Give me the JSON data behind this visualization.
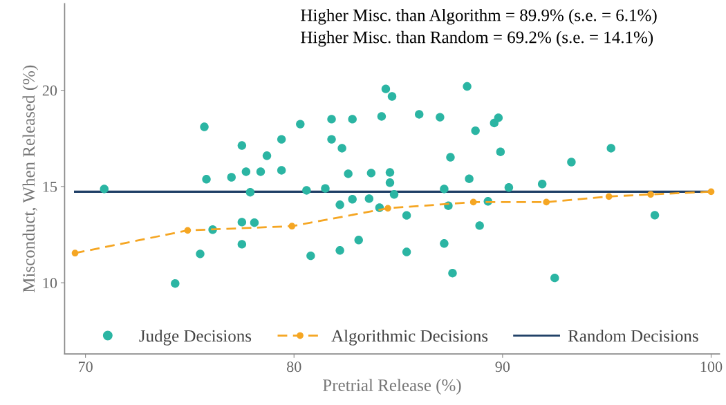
{
  "chart_data": {
    "type": "scatter",
    "xlabel": "Pretrial Release (%)",
    "ylabel": "Misconduct, When Released (%)",
    "annotations": [
      "Higher Misc. than Algorithm = 89.9% (s.e. = 6.1%)",
      "Higher Misc. than Random = 69.2% (s.e. = 14.1%)"
    ],
    "xlim": [
      69,
      100.4
    ],
    "ylim": [
      6.3,
      24.5
    ],
    "xticks": [
      70,
      80,
      90,
      100
    ],
    "yticks": [
      10,
      15,
      20
    ],
    "grid": false,
    "legend": "bottom",
    "series": [
      {
        "name": "Judge Decisions",
        "color": "#2bb5a3",
        "marker": "circle",
        "x": [
          70.9,
          74.3,
          75.7,
          75.8,
          75.5,
          76.1,
          77.0,
          77.5,
          77.5,
          77.5,
          77.7,
          77.9,
          78.1,
          78.4,
          78.7,
          79.4,
          79.4,
          80.3,
          80.6,
          80.8,
          81.5,
          81.8,
          81.8,
          82.2,
          82.2,
          82.3,
          82.6,
          82.8,
          82.8,
          83.1,
          83.7,
          83.6,
          84.1,
          84.2,
          84.4,
          84.6,
          84.6,
          84.7,
          84.8,
          85.4,
          85.4,
          86.0,
          87.0,
          87.2,
          87.2,
          87.4,
          87.5,
          87.6,
          88.3,
          88.4,
          88.7,
          88.9,
          89.3,
          89.6,
          89.8,
          89.9,
          90.3,
          91.9,
          92.5,
          93.3,
          95.2,
          97.3
        ],
        "values": [
          14.87,
          9.96,
          18.1,
          15.38,
          11.5,
          12.76,
          15.48,
          17.13,
          13.15,
          12.0,
          15.77,
          14.7,
          13.12,
          15.77,
          16.6,
          15.84,
          17.45,
          18.24,
          14.8,
          11.4,
          14.9,
          18.5,
          17.45,
          14.05,
          11.68,
          16.99,
          15.66,
          18.5,
          14.34,
          12.22,
          15.7,
          14.37,
          13.9,
          18.64,
          20.07,
          15.2,
          15.73,
          19.68,
          14.59,
          13.5,
          11.6,
          18.75,
          18.6,
          14.87,
          12.04,
          14.0,
          16.52,
          10.5,
          20.2,
          15.4,
          17.9,
          12.97,
          14.23,
          18.3,
          18.57,
          16.8,
          14.95,
          15.13,
          10.25,
          16.27,
          16.99,
          13.51
        ]
      },
      {
        "name": "Algorithmic Decisions",
        "type": "line",
        "color": "#f5a623",
        "marker": "circle",
        "line_style": "dashed",
        "x": [
          69.5,
          74.9,
          79.9,
          84.5,
          88.6,
          92.1,
          95.1,
          97.1,
          100
        ],
        "values": [
          11.54,
          12.72,
          12.94,
          13.87,
          14.19,
          14.19,
          14.48,
          14.59,
          14.73
        ]
      },
      {
        "name": "Random Decisions",
        "type": "line",
        "color": "#1f3f66",
        "marker": "none",
        "line_style": "solid",
        "x": [
          69.5,
          100
        ],
        "values": [
          14.73,
          14.73
        ]
      }
    ]
  }
}
